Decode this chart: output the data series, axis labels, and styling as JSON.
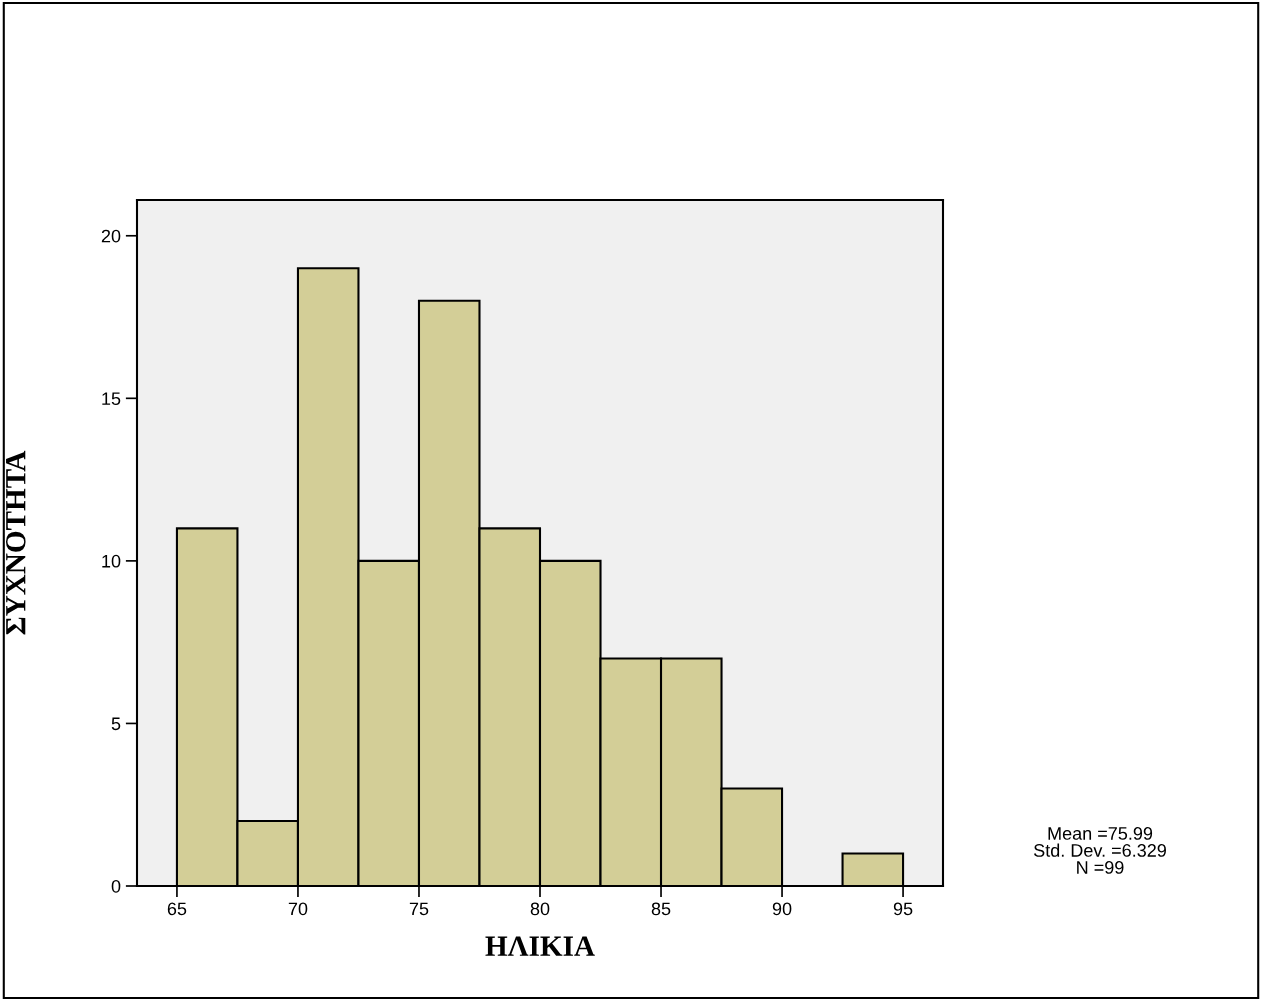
{
  "chart_data": {
    "type": "histogram",
    "xlabel": "ΗΛΙΚΙΑ",
    "ylabel": "ΣΥΧΝΟΤΗΤΑ",
    "bins": [
      65,
      67.5,
      70,
      72.5,
      75,
      77.5,
      80,
      82.5,
      85,
      87.5,
      90,
      92.5,
      95
    ],
    "values": [
      11,
      2,
      19,
      10,
      18,
      11,
      10,
      7,
      7,
      3,
      0,
      1
    ],
    "color": "#d3ce97",
    "xlim": [
      63.35,
      96.65
    ],
    "xticks": [
      65,
      70,
      75,
      80,
      85,
      90,
      95
    ],
    "ylim": [
      0,
      21.1
    ],
    "yticks": [
      0,
      5,
      10,
      15,
      20
    ],
    "grid": false,
    "annotations": [
      "Mean =75.99",
      "Std. Dev. =6.329",
      "N =99"
    ]
  }
}
